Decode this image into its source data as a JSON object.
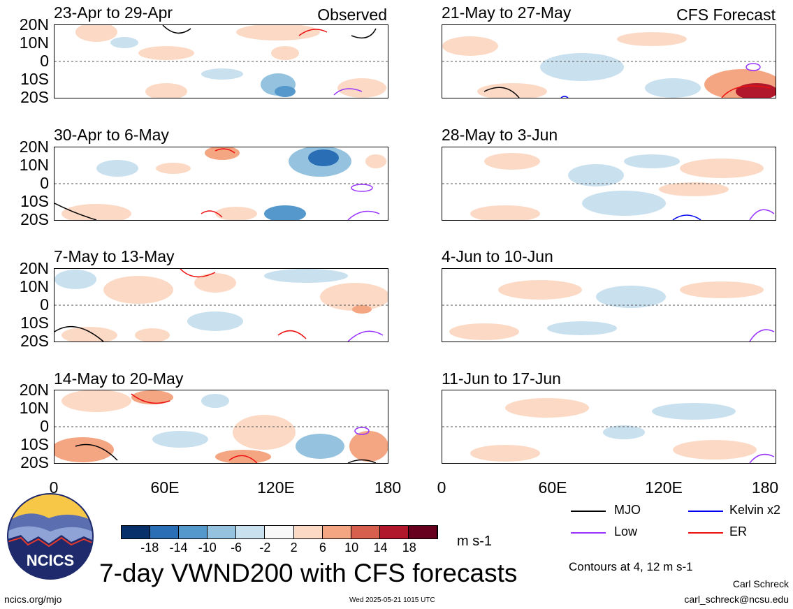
{
  "panels_left": [
    {
      "title": "23-Apr to 29-Apr",
      "tag": "Observed"
    },
    {
      "title": "30-Apr to 6-May",
      "tag": ""
    },
    {
      "title": "7-May to 13-May",
      "tag": ""
    },
    {
      "title": "14-May to 20-May",
      "tag": ""
    }
  ],
  "panels_right": [
    {
      "title": "21-May to 27-May",
      "tag": "CFS Forecast"
    },
    {
      "title": "28-May to 3-Jun",
      "tag": ""
    },
    {
      "title": "4-Jun to 10-Jun",
      "tag": ""
    },
    {
      "title": "11-Jun to 17-Jun",
      "tag": ""
    }
  ],
  "lat_labels": [
    "20N",
    "10N",
    "0",
    "10S",
    "20S"
  ],
  "lon_labels": [
    "0",
    "60E",
    "120E",
    "180"
  ],
  "colorbar": {
    "ticks": [
      "-18",
      "-14",
      "-10",
      "-6",
      "-2",
      "2",
      "6",
      "10",
      "14",
      "18"
    ],
    "colors": [
      "#08306b",
      "#2a6fb6",
      "#5598cc",
      "#94c2df",
      "#c9e0ef",
      "#f8f8f8",
      "#fcd9c5",
      "#f4a582",
      "#d6604d",
      "#b2182b",
      "#67001f"
    ],
    "units": "m s-1"
  },
  "legend": {
    "mjo": "MJO",
    "kelvin": "Kelvin x2",
    "low": "Low",
    "er": "ER",
    "mjo_color": "#000000",
    "kelvin_color": "#0000ee",
    "low_color": "#9933ff",
    "er_color": "#ee1111"
  },
  "contours_note": "Contours at 4, 12 m s-1",
  "logo_text": "NCICS",
  "main_title": "7-day VWND200 with CFS forecasts",
  "footer": {
    "url": "ncics.org/mjo",
    "timestamp": "Wed 2025-05-21 1015 UTC",
    "author": "Carl Schreck",
    "email": "carl_schreck@ncsu.edu"
  }
}
